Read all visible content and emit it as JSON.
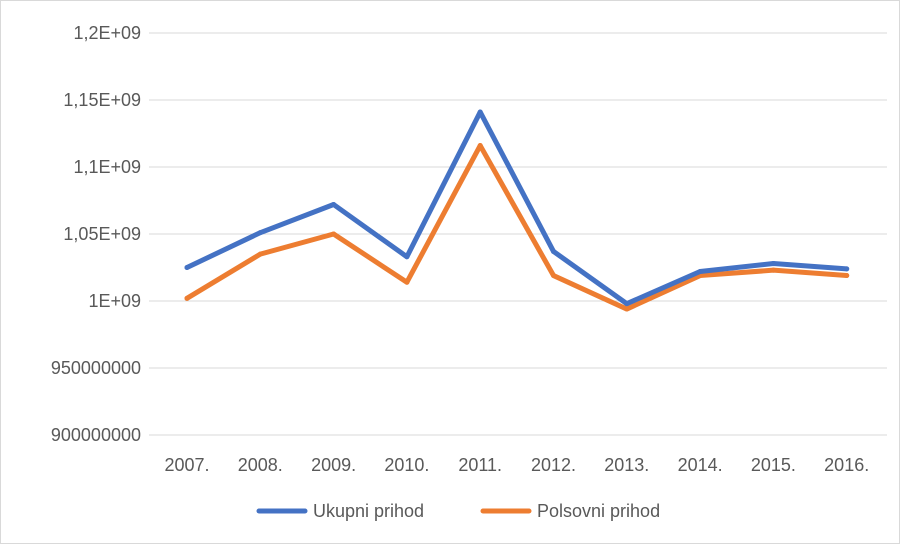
{
  "chart_data": {
    "type": "line",
    "title": "",
    "xlabel": "",
    "ylabel": "",
    "categories": [
      "2007.",
      "2008.",
      "2009.",
      "2010.",
      "2011.",
      "2012.",
      "2013.",
      "2014.",
      "2015.",
      "2016."
    ],
    "ylim": [
      900000000,
      1200000000
    ],
    "yticks": [
      900000000,
      950000000,
      1000000000,
      1050000000,
      1100000000,
      1150000000,
      1200000000
    ],
    "ytick_labels": [
      "900000000",
      "950000000",
      "1E+09",
      "1,05E+09",
      "1,1E+09",
      "1,15E+09",
      "1,2E+09"
    ],
    "grid": true,
    "legend_position": "bottom",
    "series": [
      {
        "name": "Ukupni prihod",
        "color": "#4472C4",
        "values": [
          1025000000,
          1051000000,
          1072000000,
          1033000000,
          1141000000,
          1037000000,
          998000000,
          1022000000,
          1028000000,
          1024000000
        ]
      },
      {
        "name": "Polsovni prihod",
        "color": "#ED7D31",
        "values": [
          1002000000,
          1035000000,
          1050000000,
          1014000000,
          1116000000,
          1019000000,
          994000000,
          1019000000,
          1023000000,
          1019000000
        ]
      }
    ]
  }
}
